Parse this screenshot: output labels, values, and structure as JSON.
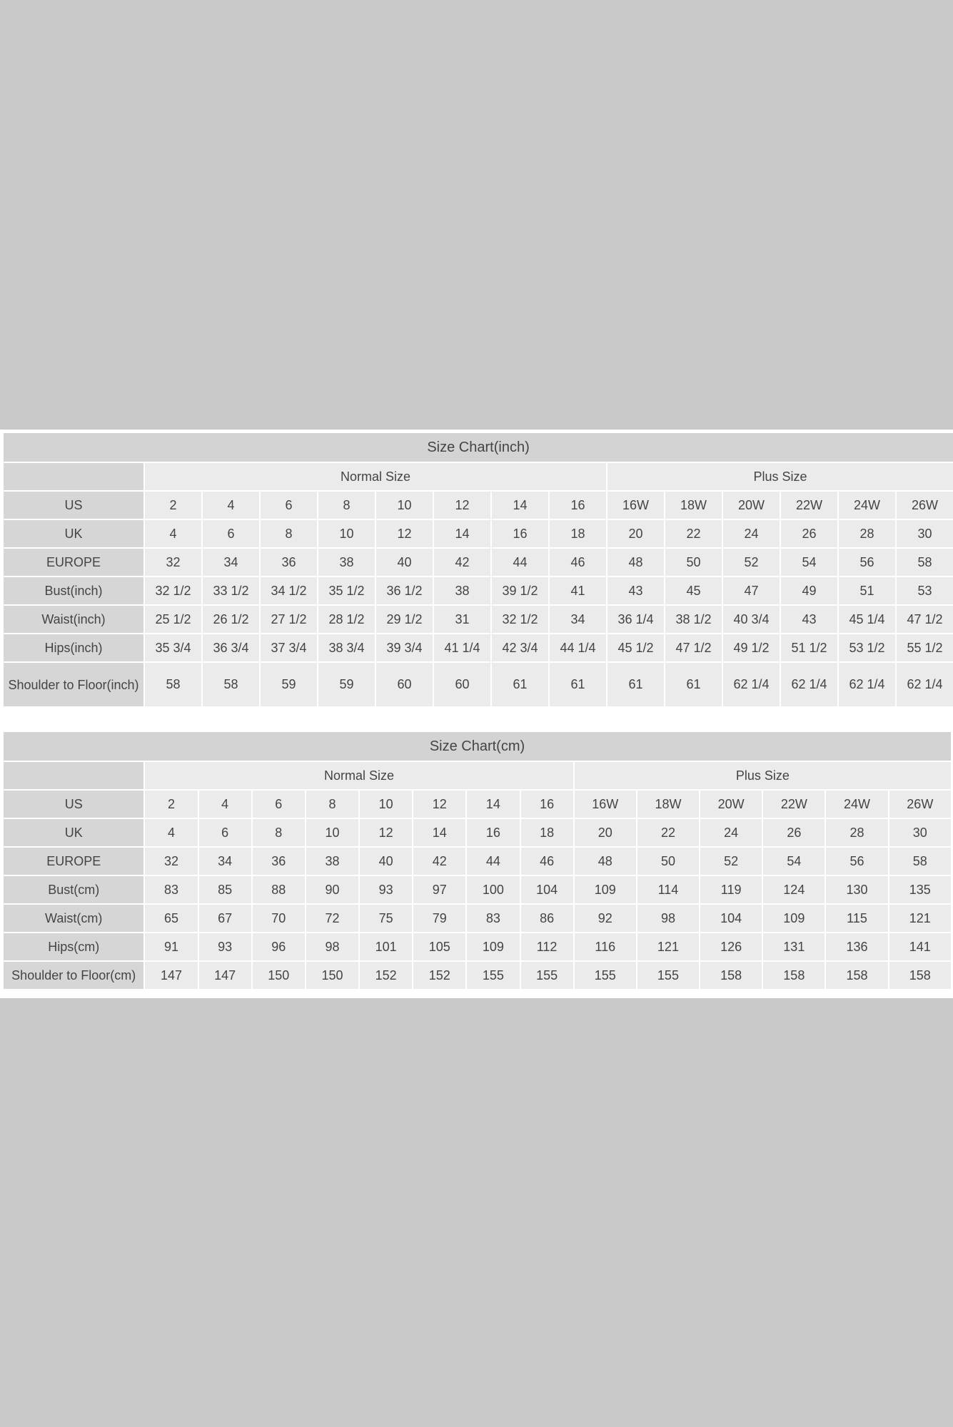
{
  "tables": [
    {
      "id": "inch",
      "title": "Size Chart(inch)",
      "groups": [
        {
          "label": "Normal Size",
          "span": 8
        },
        {
          "label": "Plus Size",
          "span": 6
        }
      ],
      "rows": [
        {
          "label": "US",
          "values": [
            "2",
            "4",
            "6",
            "8",
            "10",
            "12",
            "14",
            "16",
            "16W",
            "18W",
            "20W",
            "22W",
            "24W",
            "26W"
          ]
        },
        {
          "label": "UK",
          "values": [
            "4",
            "6",
            "8",
            "10",
            "12",
            "14",
            "16",
            "18",
            "20",
            "22",
            "24",
            "26",
            "28",
            "30"
          ]
        },
        {
          "label": "EUROPE",
          "values": [
            "32",
            "34",
            "36",
            "38",
            "40",
            "42",
            "44",
            "46",
            "48",
            "50",
            "52",
            "54",
            "56",
            "58"
          ]
        },
        {
          "label": "Bust(inch)",
          "values": [
            "32 1/2",
            "33 1/2",
            "34 1/2",
            "35 1/2",
            "36 1/2",
            "38",
            "39 1/2",
            "41",
            "43",
            "45",
            "47",
            "49",
            "51",
            "53"
          ]
        },
        {
          "label": "Waist(inch)",
          "values": [
            "25 1/2",
            "26 1/2",
            "27 1/2",
            "28 1/2",
            "29 1/2",
            "31",
            "32 1/2",
            "34",
            "36 1/4",
            "38 1/2",
            "40 3/4",
            "43",
            "45 1/4",
            "47 1/2"
          ]
        },
        {
          "label": "Hips(inch)",
          "values": [
            "35 3/4",
            "36 3/4",
            "37 3/4",
            "38 3/4",
            "39 3/4",
            "41 1/4",
            "42 3/4",
            "44 1/4",
            "45 1/2",
            "47 1/2",
            "49 1/2",
            "51 1/2",
            "53 1/2",
            "55 1/2"
          ]
        },
        {
          "label": "Shoulder to Floor(inch)",
          "values": [
            "58",
            "58",
            "59",
            "59",
            "60",
            "60",
            "61",
            "61",
            "61",
            "61",
            "62 1/4",
            "62 1/4",
            "62 1/4",
            "62 1/4"
          ]
        }
      ]
    },
    {
      "id": "cm",
      "title": "Size Chart(cm)",
      "groups": [
        {
          "label": "Normal Size",
          "span": 8
        },
        {
          "label": "Plus Size",
          "span": 6
        }
      ],
      "rows": [
        {
          "label": "US",
          "values": [
            "2",
            "4",
            "6",
            "8",
            "10",
            "12",
            "14",
            "16",
            "16W",
            "18W",
            "20W",
            "22W",
            "24W",
            "26W"
          ]
        },
        {
          "label": "UK",
          "values": [
            "4",
            "6",
            "8",
            "10",
            "12",
            "14",
            "16",
            "18",
            "20",
            "22",
            "24",
            "26",
            "28",
            "30"
          ]
        },
        {
          "label": "EUROPE",
          "values": [
            "32",
            "34",
            "36",
            "38",
            "40",
            "42",
            "44",
            "46",
            "48",
            "50",
            "52",
            "54",
            "56",
            "58"
          ]
        },
        {
          "label": "Bust(cm)",
          "values": [
            "83",
            "85",
            "88",
            "90",
            "93",
            "97",
            "100",
            "104",
            "109",
            "114",
            "119",
            "124",
            "130",
            "135"
          ]
        },
        {
          "label": "Waist(cm)",
          "values": [
            "65",
            "67",
            "70",
            "72",
            "75",
            "79",
            "83",
            "86",
            "92",
            "98",
            "104",
            "109",
            "115",
            "121"
          ]
        },
        {
          "label": "Hips(cm)",
          "values": [
            "91",
            "93",
            "96",
            "98",
            "101",
            "105",
            "109",
            "112",
            "116",
            "121",
            "126",
            "131",
            "136",
            "141"
          ]
        },
        {
          "label": "Shoulder to Floor(cm)",
          "values": [
            "147",
            "147",
            "150",
            "150",
            "152",
            "152",
            "155",
            "155",
            "155",
            "155",
            "158",
            "158",
            "158",
            "158"
          ]
        }
      ]
    }
  ],
  "colors": {
    "page_bg": "#c8c8c8",
    "title_bg": "#d3d3d3",
    "label_bg": "#d6d6d6",
    "cell_bg": "#ebebeb",
    "text": "#444444"
  }
}
